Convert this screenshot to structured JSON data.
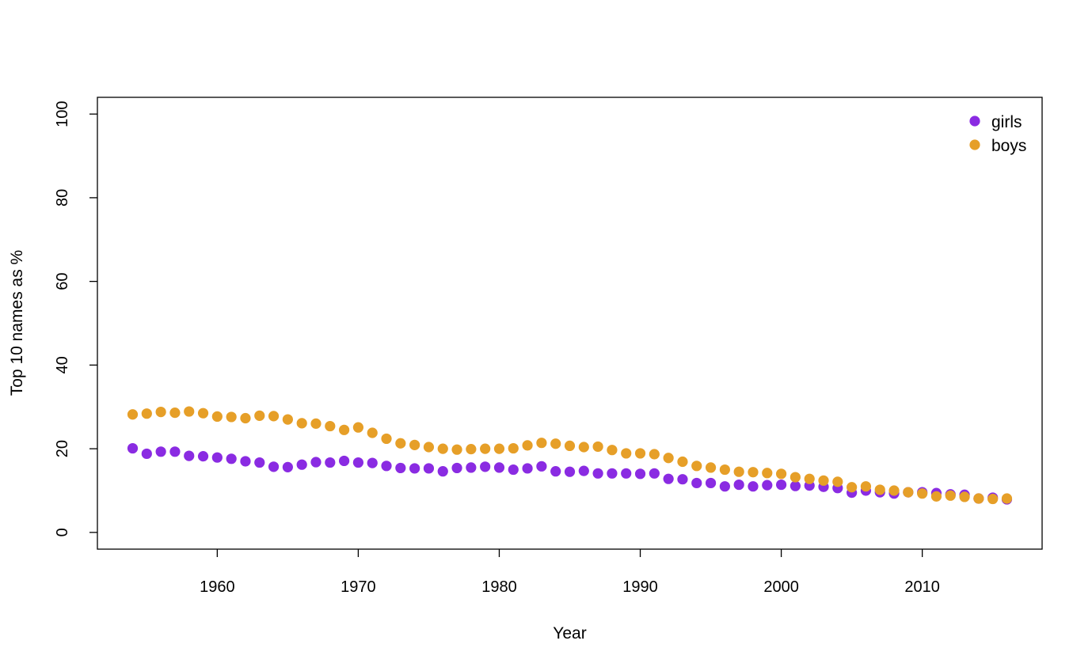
{
  "chart_data": {
    "type": "scatter",
    "title": "",
    "xlabel": "Year",
    "ylabel": "Top 10 names as %",
    "xlim": [
      1951.5,
      2018.5
    ],
    "ylim": [
      -4,
      104
    ],
    "x_ticks": [
      1960,
      1970,
      1980,
      1990,
      2000,
      2010
    ],
    "y_ticks": [
      0,
      20,
      40,
      60,
      80,
      100
    ],
    "grid": false,
    "legend_position": "top-right",
    "x": [
      1954,
      1955,
      1956,
      1957,
      1958,
      1959,
      1960,
      1961,
      1962,
      1963,
      1964,
      1965,
      1966,
      1967,
      1968,
      1969,
      1970,
      1971,
      1972,
      1973,
      1974,
      1975,
      1976,
      1977,
      1978,
      1979,
      1980,
      1981,
      1982,
      1983,
      1984,
      1985,
      1986,
      1987,
      1988,
      1989,
      1990,
      1991,
      1992,
      1993,
      1994,
      1995,
      1996,
      1997,
      1998,
      1999,
      2000,
      2001,
      2002,
      2003,
      2004,
      2005,
      2006,
      2007,
      2008,
      2009,
      2010,
      2011,
      2012,
      2013,
      2014,
      2015,
      2016
    ],
    "series": [
      {
        "name": "girls",
        "color": "#8A2BE2",
        "values": [
          20.1,
          18.8,
          19.3,
          19.3,
          18.3,
          18.2,
          17.9,
          17.6,
          17.0,
          16.7,
          15.7,
          15.6,
          16.2,
          16.8,
          16.7,
          17.1,
          16.7,
          16.6,
          15.9,
          15.4,
          15.3,
          15.3,
          14.6,
          15.4,
          15.5,
          15.7,
          15.5,
          15.0,
          15.3,
          15.8,
          14.6,
          14.5,
          14.7,
          14.1,
          14.1,
          14.1,
          14.0,
          14.1,
          12.8,
          12.7,
          11.8,
          11.8,
          11.0,
          11.4,
          11.0,
          11.3,
          11.4,
          11.1,
          11.2,
          10.9,
          10.6,
          9.5,
          10.0,
          9.6,
          9.3,
          9.6,
          9.6,
          9.4,
          9.1,
          9.0,
          8.1,
          8.3,
          7.9
        ]
      },
      {
        "name": "boys",
        "color": "#E69F28",
        "values": [
          28.2,
          28.4,
          28.8,
          28.6,
          28.9,
          28.5,
          27.7,
          27.6,
          27.3,
          27.9,
          27.8,
          27.0,
          26.1,
          26.0,
          25.4,
          24.5,
          25.1,
          23.8,
          22.4,
          21.3,
          20.9,
          20.4,
          20.0,
          19.8,
          19.9,
          20.0,
          20.0,
          20.1,
          20.8,
          21.4,
          21.2,
          20.7,
          20.4,
          20.5,
          19.7,
          18.9,
          18.9,
          18.7,
          17.8,
          16.9,
          15.9,
          15.5,
          15.0,
          14.5,
          14.4,
          14.2,
          14.0,
          13.2,
          12.8,
          12.4,
          12.1,
          10.8,
          11.0,
          10.2,
          10.0,
          9.6,
          9.3,
          8.6,
          8.8,
          8.5,
          8.1,
          8.0,
          8.1
        ]
      }
    ]
  }
}
